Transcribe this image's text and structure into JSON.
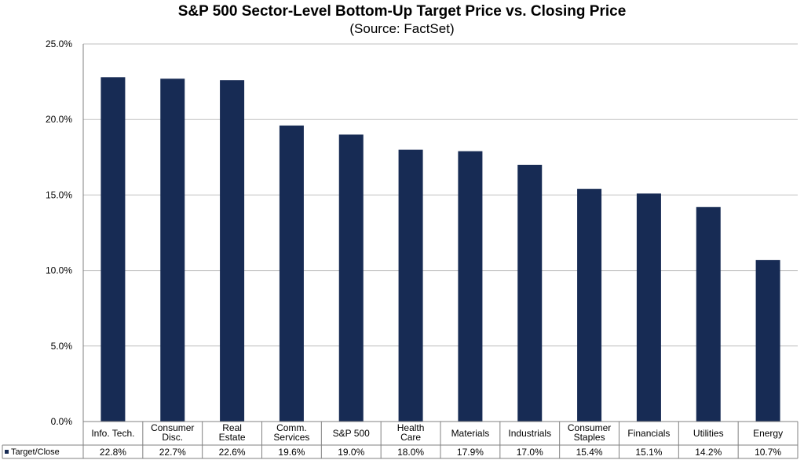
{
  "chart_data": {
    "type": "bar",
    "title": "S&P 500 Sector-Level Bottom-Up Target Price vs. Closing Price",
    "subtitle": "(Source: FactSet)",
    "categories": [
      [
        "Info. Tech."
      ],
      [
        "Consumer",
        "Disc."
      ],
      [
        "Real",
        "Estate"
      ],
      [
        "Comm.",
        "Services"
      ],
      [
        "S&P 500"
      ],
      [
        "Health",
        "Care"
      ],
      [
        "Materials"
      ],
      [
        "Industrials"
      ],
      [
        "Consumer",
        "Staples"
      ],
      [
        "Financials"
      ],
      [
        "Utilities"
      ],
      [
        "Energy"
      ]
    ],
    "series": [
      {
        "name": "Target/Close",
        "values": [
          22.8,
          22.7,
          22.6,
          19.6,
          19.0,
          18.0,
          17.9,
          17.0,
          15.4,
          15.1,
          14.2,
          10.7
        ],
        "labels": [
          "22.8%",
          "22.7%",
          "22.6%",
          "19.6%",
          "19.0%",
          "18.0%",
          "17.9%",
          "17.0%",
          "15.4%",
          "15.1%",
          "14.2%",
          "10.7%"
        ]
      }
    ],
    "yticks": [
      "0.0%",
      "5.0%",
      "10.0%",
      "15.0%",
      "20.0%",
      "25.0%"
    ],
    "ylim": [
      0,
      25
    ],
    "grid": true,
    "legend": "data-table-left",
    "colors": {
      "bar": "#172b54",
      "legend_marker": "#172b54"
    }
  }
}
